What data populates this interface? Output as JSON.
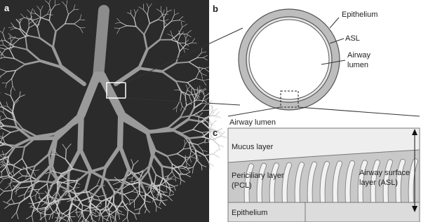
{
  "panels": {
    "a": {
      "label": "a"
    },
    "b": {
      "label": "b",
      "epithelium": "Epithelium",
      "asl": "ASL",
      "lumen": [
        "Airway",
        "lumen"
      ]
    },
    "c": {
      "label": "c",
      "lumen": "Airway lumen",
      "mucus": "Mucus layer",
      "pcl": [
        "Periciliary layer",
        "(PCL)"
      ],
      "epithelium": "Epithelium",
      "asl": [
        "Airway surface",
        "layer (ASL)"
      ]
    }
  }
}
